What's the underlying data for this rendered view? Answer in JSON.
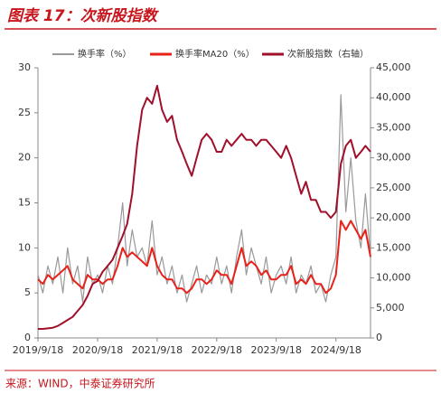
{
  "chart_data": {
    "type": "line",
    "title": "图表 17：次新股指数",
    "source": "来源：WIND，中泰证券研究所",
    "x": [
      "2019/9/18",
      "2019/10/18",
      "2019/11/18",
      "2019/12/18",
      "2020/1/18",
      "2020/2/18",
      "2020/3/18",
      "2020/4/18",
      "2020/5/18",
      "2020/6/18",
      "2020/7/18",
      "2020/8/18",
      "2020/9/18",
      "2020/10/18",
      "2020/11/18",
      "2020/12/18",
      "2021/1/18",
      "2021/2/18",
      "2021/3/18",
      "2021/4/18",
      "2021/5/18",
      "2021/6/18",
      "2021/7/18",
      "2021/8/18",
      "2021/9/18",
      "2021/10/18",
      "2021/11/18",
      "2021/12/18",
      "2022/1/18",
      "2022/2/18",
      "2022/3/18",
      "2022/4/18",
      "2022/5/18",
      "2022/6/18",
      "2022/7/18",
      "2022/8/18",
      "2022/9/18",
      "2022/10/18",
      "2022/11/18",
      "2022/12/18",
      "2023/1/18",
      "2023/2/18",
      "2023/3/18",
      "2023/4/18",
      "2023/5/18",
      "2023/6/18",
      "2023/7/18",
      "2023/8/18",
      "2023/9/18",
      "2023/10/18",
      "2023/11/18",
      "2023/12/18",
      "2024/1/18",
      "2024/2/18",
      "2024/3/18",
      "2024/4/18",
      "2024/5/18",
      "2024/6/18",
      "2024/7/18",
      "2024/8/18",
      "2024/9/18",
      "2024/10/18",
      "2024/11/18",
      "2024/12/18",
      "2025/1/18",
      "2025/2/18",
      "2025/3/18",
      "2025/4/18"
    ],
    "xlim": [
      "2019/9/18",
      "2025/4/18"
    ],
    "xticks": [
      "2019/9/18",
      "2020/9/18",
      "2021/9/18",
      "2022/9/18",
      "2023/9/18",
      "2024/9/18"
    ],
    "ylim": [
      0,
      30
    ],
    "yticks": [
      0,
      5,
      10,
      15,
      20,
      25,
      30
    ],
    "y2lim": [
      0,
      45000
    ],
    "y2ticks": [
      0,
      {
        "value": 5000,
        "label": "5,000"
      },
      {
        "value": 10000,
        "label": "10,000"
      },
      {
        "value": 15000,
        "label": "15,000"
      },
      {
        "value": 20000,
        "label": "20,000"
      },
      {
        "value": 25000,
        "label": "25,000"
      },
      {
        "value": 30000,
        "label": "30,000"
      },
      {
        "value": 35000,
        "label": "35,000"
      },
      {
        "value": 40000,
        "label": "40,000"
      },
      {
        "value": 45000,
        "label": "45,000"
      }
    ],
    "grid": false,
    "series": [
      {
        "name": "换手率（%）",
        "color": "#999999",
        "values": [
          7,
          5,
          8,
          6,
          9,
          5,
          10,
          6,
          8,
          4,
          9,
          6,
          7,
          5,
          8,
          6,
          10,
          15,
          8,
          12,
          9,
          10,
          8,
          13,
          7,
          9,
          6,
          8,
          5,
          7,
          4,
          6,
          8,
          5,
          7,
          6,
          9,
          6,
          8,
          5,
          9,
          12,
          7,
          10,
          8,
          6,
          9,
          5,
          7,
          8,
          6,
          9,
          5,
          7,
          6,
          8,
          5,
          6,
          4,
          7,
          9,
          27,
          14,
          20,
          13,
          10,
          16,
          9
        ]
      },
      {
        "name": "换手率MA20（%）",
        "color": "#e8211a",
        "values": [
          6.5,
          6,
          7,
          6.5,
          7,
          7.5,
          8,
          6.5,
          6,
          5.5,
          7,
          6.5,
          6.5,
          6,
          6.5,
          6.5,
          8,
          10,
          9,
          9.5,
          9,
          8.5,
          8,
          10,
          8,
          7,
          6.5,
          6.5,
          5.5,
          5.5,
          5,
          5.5,
          6.5,
          6.5,
          6,
          6.5,
          7.5,
          7,
          7,
          6,
          8,
          10,
          8,
          8.5,
          8,
          7,
          7.5,
          6.5,
          6.5,
          7,
          7,
          8,
          6,
          6.5,
          6,
          7,
          6,
          6,
          5,
          5.5,
          7,
          13,
          12,
          13,
          12,
          11,
          12,
          9
        ]
      },
      {
        "name": "次新股指数（右轴）",
        "color": "#a0102a",
        "axis": "y2",
        "values": [
          1500,
          1500,
          1600,
          1700,
          2000,
          2500,
          3000,
          3500,
          4500,
          5500,
          7000,
          9000,
          9500,
          11000,
          12000,
          13000,
          15000,
          17000,
          19000,
          24000,
          32000,
          38000,
          40000,
          39000,
          42000,
          38000,
          36000,
          37000,
          33000,
          31000,
          29000,
          27000,
          30000,
          33000,
          34000,
          33000,
          31000,
          31000,
          33000,
          32000,
          33000,
          34000,
          33000,
          33000,
          32000,
          33000,
          33000,
          32000,
          31000,
          30000,
          32000,
          30000,
          27000,
          24000,
          26000,
          23000,
          23000,
          21000,
          21000,
          20000,
          21000,
          29000,
          32000,
          33000,
          30000,
          31000,
          32000,
          31000
        ]
      }
    ]
  }
}
